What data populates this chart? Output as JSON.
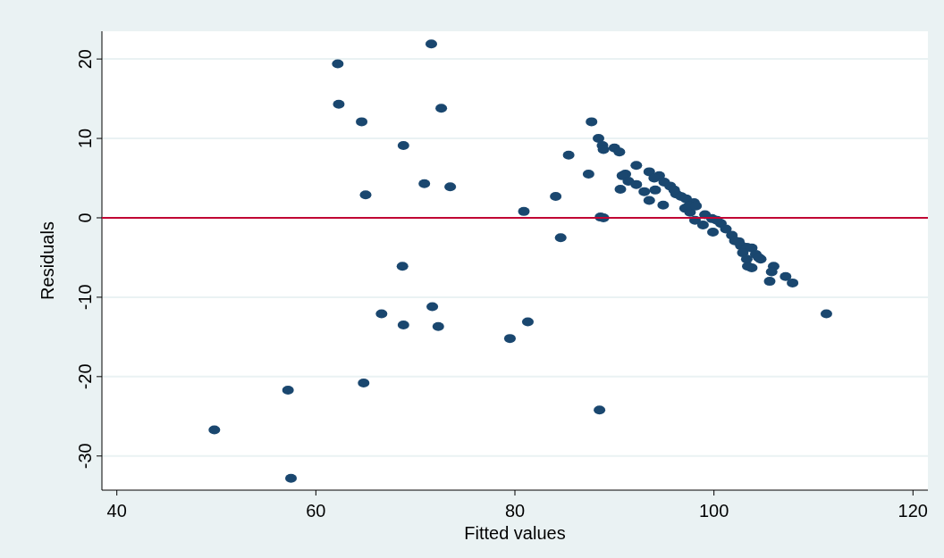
{
  "chart_data": {
    "type": "scatter",
    "xlabel": "Fitted values",
    "ylabel": "Residuals",
    "xlim": [
      38.5,
      121.5
    ],
    "xticks": [
      40,
      60,
      80,
      100,
      120
    ],
    "ylim": [
      -34.3,
      23.5
    ],
    "yticks": [
      -30,
      -20,
      -10,
      0,
      10,
      20
    ],
    "grid": "y",
    "marker": "circle",
    "ref_lines": [
      {
        "axis": "y",
        "value": 0,
        "color": "#c10534"
      }
    ],
    "series": [
      {
        "color": "#1a476f",
        "x": [
          49.8,
          57.2,
          57.5,
          62.2,
          62.3,
          64.6,
          65.0,
          64.8,
          66.6,
          68.8,
          68.7,
          68.8,
          70.9,
          71.6,
          71.7,
          72.3,
          72.6,
          73.5,
          79.5,
          80.9,
          81.3,
          84.1,
          84.6,
          85.4,
          87.4,
          87.7,
          88.5,
          88.4,
          88.8,
          88.9,
          88.6,
          88.9,
          90.0,
          90.5,
          90.6,
          92.2,
          91.1,
          90.8,
          91.4,
          92.2,
          93.5,
          94.5,
          93.0,
          93.5,
          94.1,
          94.9,
          95.6,
          96.2,
          96.7,
          97.2,
          98.0,
          97.1,
          97.6,
          98.1,
          99.1,
          99.8,
          98.9,
          99.9,
          100.7,
          101.2,
          101.8,
          102.1,
          102.7,
          103.3,
          102.9,
          103.8,
          104.2,
          104.7,
          103.3,
          103.8,
          103.4,
          106.0,
          105.8,
          105.6,
          107.2,
          107.9,
          111.3,
          96.0,
          94.0,
          95.0,
          97.5,
          100.3,
          102.5,
          104.5,
          98.2
        ],
        "values": [
          -26.7,
          -21.7,
          -32.8,
          19.4,
          14.3,
          12.1,
          2.9,
          -20.8,
          -12.1,
          9.1,
          -6.1,
          -13.5,
          4.3,
          21.9,
          -11.2,
          -13.7,
          13.8,
          3.9,
          -15.2,
          0.8,
          -13.1,
          2.7,
          -2.5,
          7.9,
          5.5,
          12.1,
          -24.2,
          10.0,
          9.1,
          8.6,
          0.1,
          0.0,
          8.8,
          8.3,
          3.6,
          6.6,
          5.5,
          5.3,
          4.6,
          4.2,
          5.8,
          5.3,
          3.3,
          2.2,
          3.5,
          1.6,
          4.0,
          3.0,
          2.7,
          2.4,
          1.9,
          1.2,
          0.7,
          -0.3,
          0.4,
          -0.1,
          -0.9,
          -1.8,
          -0.7,
          -1.4,
          -2.2,
          -2.9,
          -3.5,
          -3.7,
          -4.4,
          -3.8,
          -4.6,
          -5.2,
          -5.2,
          -6.3,
          -6.1,
          -6.1,
          -6.8,
          -8.0,
          -7.4,
          -8.2,
          -12.1,
          3.5,
          5.0,
          4.5,
          1.5,
          -0.3,
          -3.0,
          -5.0,
          1.5
        ]
      }
    ]
  }
}
